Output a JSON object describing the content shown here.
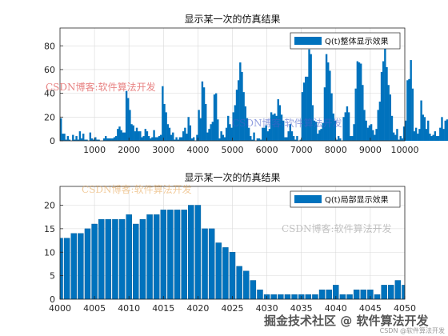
{
  "chart_data": [
    {
      "type": "bar",
      "title": "显示某一次的仿真结果",
      "legend": {
        "label": "Q(t)整体显示效果",
        "placement": "top-right"
      },
      "xlim": [
        0,
        10000
      ],
      "ylim": [
        0,
        95
      ],
      "xticks": [
        1000,
        2000,
        3000,
        4000,
        5000,
        6000,
        7000,
        8000,
        9000,
        10000
      ],
      "yticks": [
        0,
        20,
        40,
        60,
        80
      ],
      "grid": true,
      "color": "#0072BD",
      "x_step": 50,
      "values": [
        19,
        6,
        6,
        1,
        4,
        1,
        0,
        5,
        1,
        4,
        1,
        8,
        2,
        6,
        1,
        1,
        0,
        7,
        2,
        1,
        3,
        1,
        1,
        0,
        0,
        2,
        4,
        2,
        2,
        2,
        2,
        3,
        4,
        10,
        12,
        9,
        7,
        7,
        42,
        36,
        26,
        14,
        13,
        8,
        11,
        8,
        8,
        3,
        4,
        10,
        8,
        4,
        2,
        3,
        9,
        3,
        3,
        4,
        5,
        46,
        31,
        24,
        14,
        11,
        5,
        7,
        1,
        3,
        1,
        3,
        3,
        8,
        11,
        6,
        20,
        13,
        2,
        3,
        0,
        5,
        26,
        19,
        50,
        45,
        31,
        7,
        10,
        14,
        16,
        39,
        40,
        18,
        2,
        8,
        5,
        3,
        11,
        21,
        14,
        11,
        24,
        30,
        43,
        51,
        66,
        58,
        41,
        29,
        19,
        11,
        4,
        1,
        7,
        0,
        2,
        2,
        1,
        11,
        11,
        13,
        8,
        10,
        24,
        22,
        23,
        21,
        35,
        30,
        22,
        17,
        3,
        3,
        8,
        14,
        8,
        4,
        1,
        4,
        0,
        1,
        41,
        49,
        54,
        54,
        77,
        73,
        30,
        17,
        16,
        6,
        9,
        10,
        15,
        45,
        73,
        66,
        59,
        40,
        23,
        17,
        1,
        4,
        2,
        0,
        20,
        24,
        29,
        24,
        4,
        4,
        14,
        44,
        67,
        66,
        65,
        47,
        26,
        17,
        11,
        13,
        14,
        9,
        5,
        10,
        26,
        33,
        58,
        67,
        79,
        62,
        47,
        39,
        21,
        7,
        5,
        10,
        1,
        4,
        2,
        12,
        17,
        51,
        52,
        68,
        44,
        8,
        11,
        6,
        10,
        34,
        22,
        20,
        10,
        17,
        6,
        4,
        5,
        8,
        4,
        4,
        11,
        20,
        10,
        17,
        18,
        18,
        11,
        14,
        23,
        23,
        35,
        72,
        70,
        65,
        47,
        36,
        17,
        17,
        5,
        0,
        6,
        1,
        2,
        2,
        1,
        3,
        4,
        1,
        2,
        4,
        1,
        3,
        4,
        11,
        12,
        12,
        11,
        13,
        5,
        0,
        3,
        23,
        24,
        10,
        7,
        6,
        12,
        9,
        5,
        6,
        15,
        18,
        16,
        5,
        3,
        8,
        5,
        4,
        14,
        22,
        25,
        19,
        10,
        8,
        4,
        2,
        3,
        4,
        5,
        2,
        2,
        0,
        1,
        0,
        2,
        5,
        13,
        14,
        12,
        25,
        17,
        6,
        2,
        1,
        2,
        2,
        3,
        3,
        1,
        5,
        2,
        2,
        0,
        1,
        4,
        3,
        12,
        11,
        8,
        9,
        2,
        0,
        0,
        6,
        7,
        23,
        20,
        19,
        16,
        14,
        5,
        6,
        5,
        0,
        1,
        2,
        7,
        22,
        20,
        21,
        16,
        11,
        4,
        4,
        1,
        1,
        0,
        0,
        2,
        6,
        11,
        15,
        17,
        12,
        10,
        2,
        0,
        8,
        9,
        7,
        2,
        3,
        1,
        0,
        2,
        3,
        0,
        2,
        0,
        9,
        11,
        11,
        7,
        2,
        0,
        1,
        1,
        2,
        4,
        1,
        3,
        4,
        3,
        1,
        12,
        5,
        6,
        21
      ]
    },
    {
      "type": "bar",
      "title": "显示某一次的仿真结果",
      "legend": {
        "label": "Q(t)局部显示效果",
        "placement": "top-right"
      },
      "xlim": [
        4000,
        4050
      ],
      "ylim": [
        0,
        24
      ],
      "xticks": [
        4000,
        4005,
        4010,
        4015,
        4020,
        4025,
        4030,
        4035,
        4040,
        4045,
        4050
      ],
      "yticks": [
        0,
        5,
        10,
        15,
        20
      ],
      "grid": true,
      "color": "#0072BD",
      "x": [
        4000,
        4001,
        4002,
        4003,
        4004,
        4005,
        4006,
        4007,
        4008,
        4009,
        4010,
        4011,
        4012,
        4013,
        4014,
        4015,
        4016,
        4017,
        4018,
        4019,
        4020,
        4021,
        4022,
        4023,
        4024,
        4025,
        4026,
        4027,
        4028,
        4029,
        4030,
        4031,
        4032,
        4033,
        4034,
        4035,
        4036,
        4037,
        4038,
        4039,
        4040,
        4041,
        4042,
        4043,
        4044,
        4045,
        4046,
        4047,
        4048,
        4049,
        4050
      ],
      "values": [
        13,
        13,
        14,
        14,
        15,
        16,
        17,
        17,
        17,
        17,
        18,
        16,
        17,
        18,
        18,
        19,
        19,
        19,
        19,
        20,
        20,
        15,
        15,
        12,
        11,
        10,
        7,
        6,
        4,
        2,
        1,
        1,
        1,
        1,
        1,
        1,
        1,
        1,
        2,
        2,
        3,
        1,
        1,
        2,
        2,
        2,
        1,
        3,
        3,
        4,
        3
      ]
    }
  ],
  "watermarks": [
    "CSDN博客:软件算法开发",
    "CSDN博客:软件算法开发",
    "CSDN博客:软件算法开发",
    "CSDN博客:软件算法开发"
  ],
  "footer": {
    "main": "掘金技术社区 @ 软件算法开发",
    "sub": "CSDN @软件算法开发"
  }
}
